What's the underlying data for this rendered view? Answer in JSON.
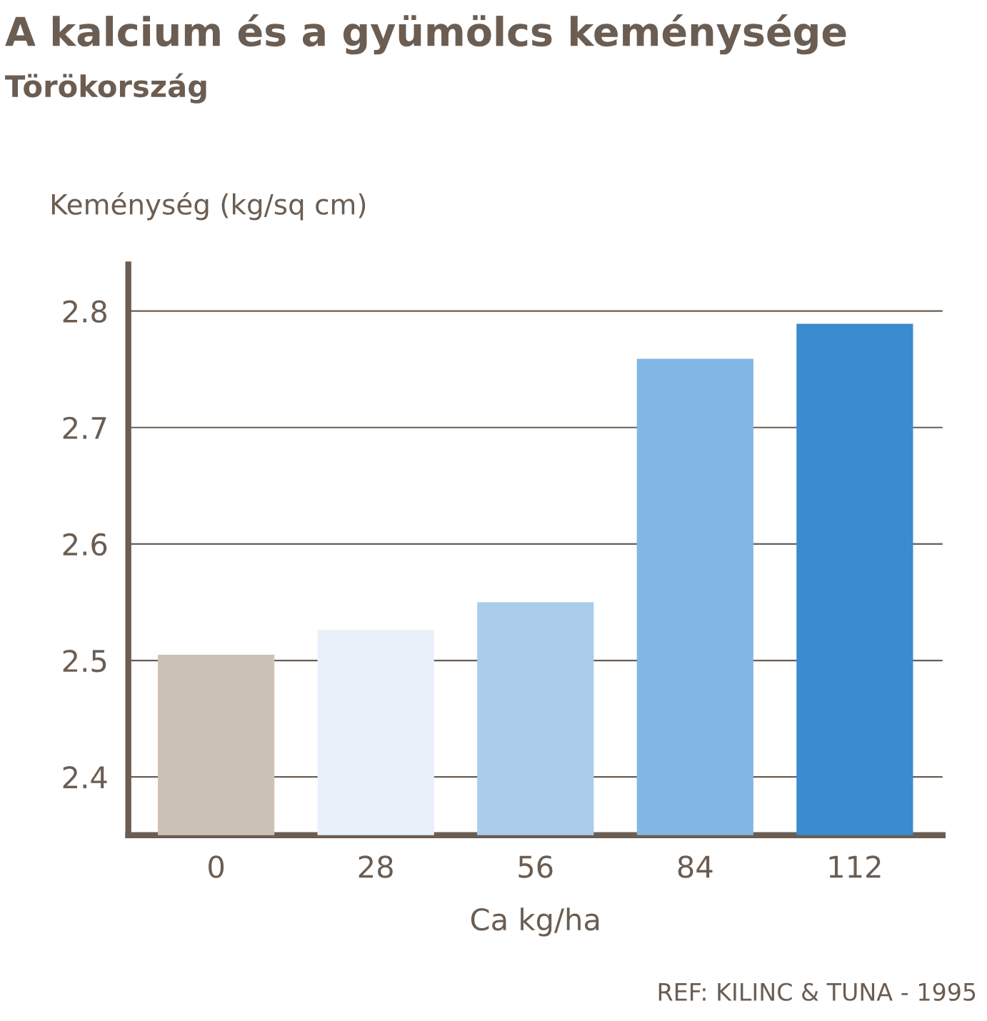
{
  "chart_data": {
    "type": "bar",
    "title": "A kalcium és a gyümölcs keménysége",
    "subtitle": "Törökország",
    "ylabel": "Keménység (kg/sq cm)",
    "xlabel": "Ca kg/ha",
    "categories": [
      "0",
      "28",
      "56",
      "84",
      "112"
    ],
    "values": [
      2.505,
      2.526,
      2.55,
      2.759,
      2.789
    ],
    "colors": [
      "#cdc2b6",
      "#e9f0fa",
      "#a9cdeb",
      "#82b7e5",
      "#3a8bcf"
    ],
    "ylim": [
      2.35,
      2.84
    ],
    "yticks": [
      2.4,
      2.5,
      2.6,
      2.7,
      2.8
    ],
    "grid": "y",
    "annotations": [
      "REF: KILINC & TUNA - 1995"
    ]
  }
}
